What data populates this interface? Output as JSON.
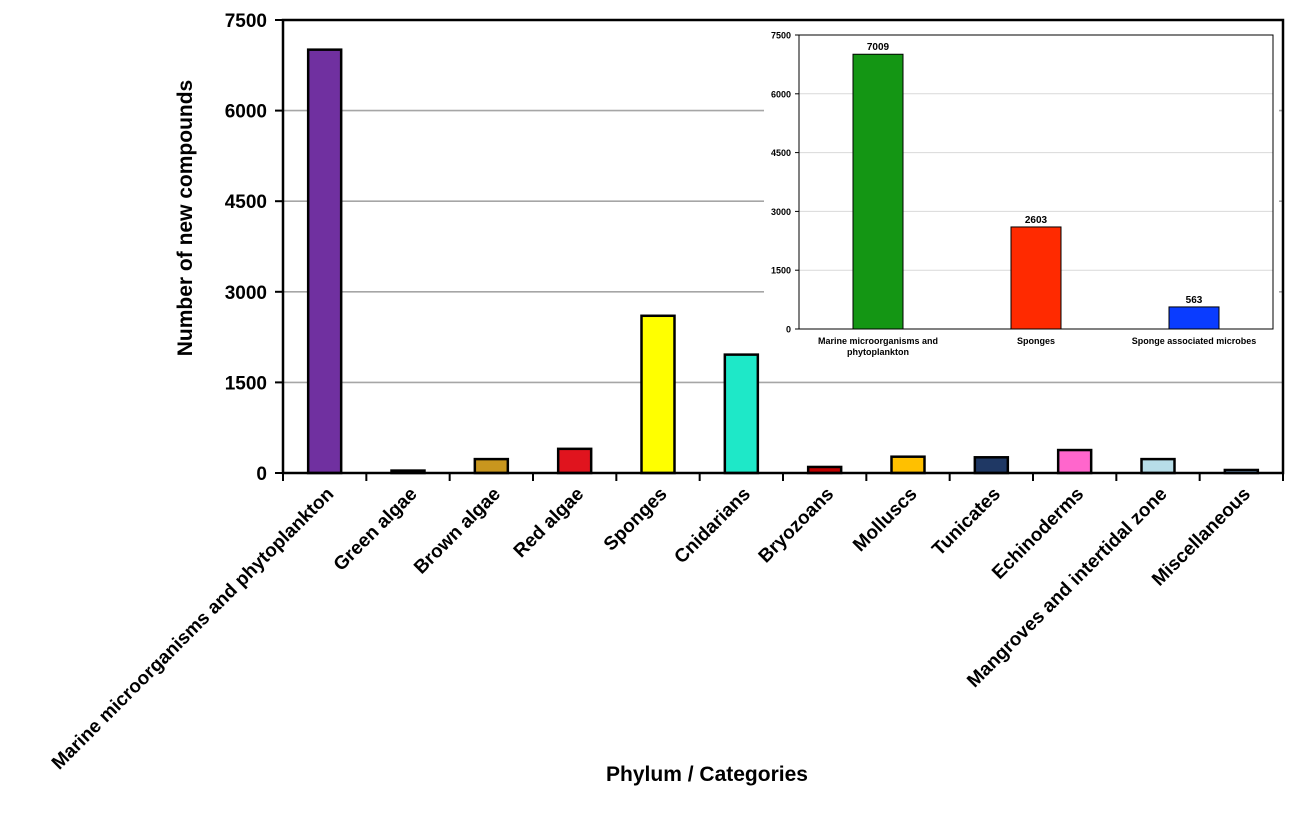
{
  "chart_data": [
    {
      "type": "bar",
      "title": "",
      "xlabel": "Phylum / Categories",
      "ylabel": "Number of new compounds",
      "ylim": [
        0,
        7500
      ],
      "yticks": [
        0,
        1500,
        3000,
        4500,
        6000,
        7500
      ],
      "grid": true,
      "categories": [
        "Marine microorganisms and phytoplankton",
        "Green algae",
        "Brown algae",
        "Red algae",
        "Sponges",
        "Cnidarians",
        "Bryozoans",
        "Molluscs",
        "Tunicates",
        "Echinoderms",
        "Mangroves and intertidal zone",
        "Miscellaneous"
      ],
      "values": [
        7009,
        40,
        230,
        400,
        2603,
        1960,
        100,
        270,
        260,
        380,
        230,
        50
      ],
      "colors": [
        "#7030a0",
        "#9bbb59",
        "#c8961e",
        "#e0141e",
        "#ffff00",
        "#1ee8c8",
        "#c00000",
        "#ffc000",
        "#1f3864",
        "#ff66cc",
        "#b7dde8",
        "#99ccff"
      ]
    },
    {
      "type": "bar",
      "title": "",
      "xlabel": "",
      "ylabel": "",
      "ylim": [
        0,
        7500
      ],
      "yticks": [
        0,
        1500,
        3000,
        4500,
        6000,
        7500
      ],
      "grid": true,
      "categories": [
        [
          "Marine microorganisms and",
          "phytoplankton"
        ],
        [
          "Sponges"
        ],
        [
          "Sponge associated microbes"
        ]
      ],
      "values": [
        7009,
        2603,
        563
      ],
      "data_labels": [
        "7009",
        "2603",
        "563"
      ],
      "colors": [
        "#149614",
        "#ff2a00",
        "#0a3cff"
      ]
    }
  ]
}
